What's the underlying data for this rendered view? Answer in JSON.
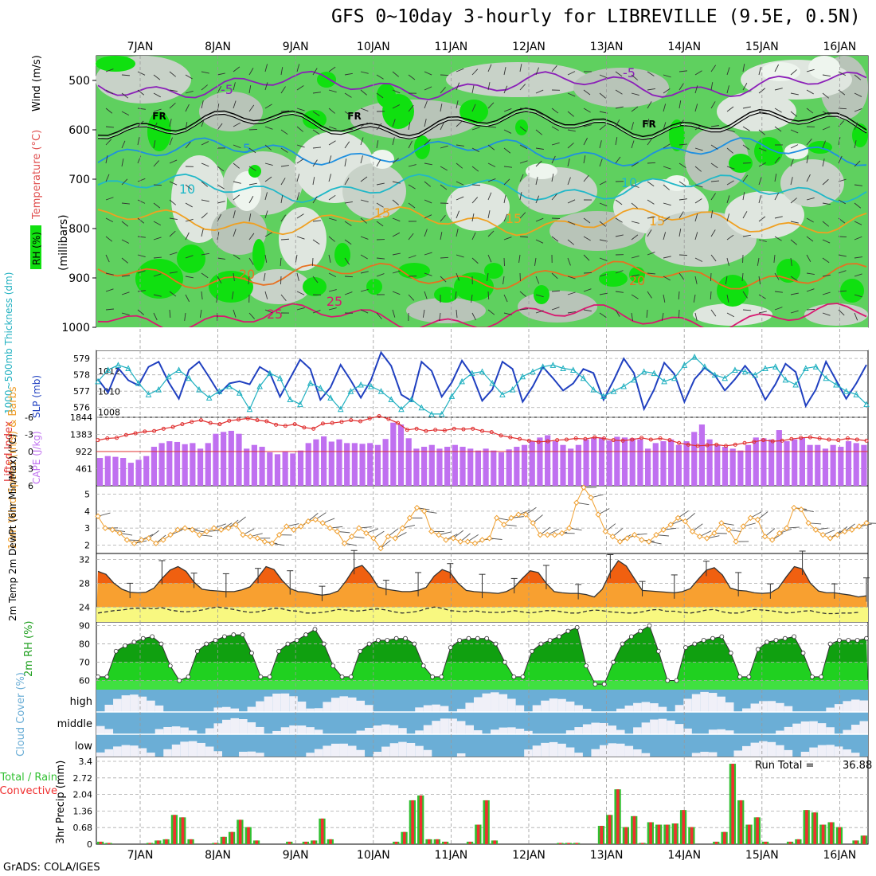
{
  "title": "GFS 0~10day 3-hourly for LIBREVILLE (9.5E, 0.5N)",
  "credit": "GrADS: COLA/IGES",
  "date_labels": [
    "7JAN",
    "8JAN",
    "9JAN",
    "10JAN",
    "11JAN",
    "12JAN",
    "13JAN",
    "14JAN",
    "15JAN",
    "16JAN"
  ],
  "colors": {
    "rh_light": "#90e090",
    "rh_mid": "#5fd05f",
    "rh_bright": "#10e010",
    "temp_minus5": "#8b1fb8",
    "temp_5": "#1f90e0",
    "temp_10": "#20b8c8",
    "temp_15": "#f0a020",
    "temp_20": "#e87020",
    "temp_25": "#d81870",
    "slp": "#2040c0",
    "thickness": "#20b0c0",
    "cape": "#c070f0",
    "lifted": "#e03030",
    "wind10m": "#f0a030",
    "temp_dark": "#f06010",
    "temp_mid": "#f8a030",
    "dew": "#f8f880",
    "cloud_blue": "#6baed6",
    "cloud_white": "#f0f0f8",
    "rain_green": "#30c030",
    "rain_red": "#f03030"
  },
  "chart_data": [
    {
      "id": "upper",
      "type": "contour",
      "ylabel_parts": [
        "RH (%)",
        "Temperature (°C)",
        "Wind (m/s)",
        "(millibars)"
      ],
      "yticks": [
        500,
        600,
        700,
        800,
        900,
        1000
      ],
      "ylim": [
        1000,
        450
      ],
      "contour_labels": [
        {
          "text": "-5",
          "level": -5
        },
        {
          "text": "-5",
          "level": -5
        },
        {
          "text": "FR",
          "level": 0
        },
        {
          "text": "FR",
          "level": 0
        },
        {
          "text": "FR",
          "level": 0
        },
        {
          "text": "5",
          "level": 5
        },
        {
          "text": "10",
          "level": 10
        },
        {
          "text": "10",
          "level": 10
        },
        {
          "text": "15",
          "level": 15
        },
        {
          "text": "15",
          "level": 15
        },
        {
          "text": "15",
          "level": 15
        },
        {
          "text": "20",
          "level": 20
        },
        {
          "text": "20",
          "level": 20
        },
        {
          "text": "25",
          "level": 25
        },
        {
          "text": "25",
          "level": 25
        }
      ],
      "isotherms": [
        {
          "name": "-5",
          "pressure_mean": 510
        },
        {
          "name": "FR",
          "pressure_mean": 585
        },
        {
          "name": "5",
          "pressure_mean": 645
        },
        {
          "name": "10",
          "pressure_mean": 718
        },
        {
          "name": "15",
          "pressure_mean": 785
        },
        {
          "name": "20",
          "pressure_mean": 895
        },
        {
          "name": "25",
          "pressure_mean": 980
        }
      ]
    },
    {
      "id": "slp",
      "type": "line",
      "ylabel_left": "1000~500mb Thickness (dm)",
      "ylabel_right": "SLP (mb)",
      "thickness_ticks": [
        "579",
        "578",
        "577",
        "576"
      ],
      "slp_ticks": [
        "1012",
        "1010",
        "1008"
      ],
      "slp_range": [
        1007.5,
        1014
      ],
      "thickness_range": [
        575.5,
        579.3
      ],
      "slp": [
        1011.2,
        1009.9,
        1012.3,
        1011.1,
        1010.6,
        1012.4,
        1012.9,
        1010.9,
        1009.3,
        1012.1,
        1012.9,
        1011.4,
        1009.8,
        1010.8,
        1011.0,
        1010.7,
        1012.4,
        1011.8,
        1009.5,
        1011.3,
        1013.1,
        1012.2,
        1009.2,
        1010.4,
        1012.6,
        1011.1,
        1009.4,
        1011.1,
        1013.8,
        1012.5,
        1009.7,
        1009.1,
        1012.9,
        1012.0,
        1009.5,
        1010.9,
        1013.0,
        1011.6,
        1009.1,
        1010.2,
        1012.9,
        1012.2,
        1009.0,
        1010.5,
        1012.4,
        1011.3,
        1010.1,
        1010.8,
        1012.2,
        1011.8,
        1009.2,
        1011.1,
        1013.2,
        1011.8,
        1008.3,
        1010.2,
        1012.8,
        1011.7,
        1009.0,
        1011.2,
        1012.3,
        1011.6,
        1010.1,
        1011.2,
        1012.5,
        1011.3,
        1009.2,
        1010.7,
        1012.7,
        1011.9,
        1008.6,
        1010.2,
        1012.9,
        1011.1,
        1009.3,
        1010.8,
        1012.6
      ],
      "thickness": [
        577.6,
        578.3,
        578.6,
        578.4,
        577.5,
        576.8,
        577.1,
        577.9,
        578.3,
        577.8,
        577.1,
        576.6,
        577.0,
        577.3,
        576.9,
        575.9,
        577.3,
        578.1,
        577.8,
        576.5,
        576.2,
        577.5,
        577.2,
        576.6,
        575.9,
        577.0,
        577.4,
        577.3,
        577.0,
        576.5,
        575.9,
        576.5,
        576.0,
        575.6,
        575.6,
        576.7,
        577.6,
        578.1,
        578.2,
        577.5,
        576.8,
        577.1,
        577.9,
        578.2,
        578.5,
        578.6,
        578.4,
        578.3,
        577.8,
        577.1,
        576.7,
        577.0,
        577.3,
        577.7,
        578.2,
        578.1,
        577.6,
        577.8,
        578.6,
        579.1,
        578.5,
        578.0,
        577.8,
        578.3,
        578.2,
        578.0,
        578.4,
        578.5,
        577.7,
        577.4,
        578.4,
        578.5,
        577.8,
        577.4,
        577.0,
        576.8,
        576.2
      ]
    },
    {
      "id": "cape",
      "type": "bar+line",
      "ylabel_left": "Lifted Index",
      "ylabel_right": "CAPE (J/kg)",
      "lifted_ticks": [
        "-6",
        "-3",
        "0",
        "3",
        "6"
      ],
      "cape_ticks": [
        "1844",
        "1383",
        "922",
        "461"
      ],
      "cape_max": 1844,
      "lifted_range": [
        -6,
        6
      ],
      "cape": [
        750,
        800,
        780,
        750,
        620,
        700,
        800,
        1050,
        1150,
        1200,
        1180,
        1120,
        1150,
        1000,
        1150,
        1400,
        1450,
        1480,
        1400,
        1000,
        1100,
        1050,
        900,
        850,
        920,
        870,
        950,
        1150,
        1250,
        1330,
        1190,
        1250,
        1150,
        1150,
        1130,
        1150,
        1100,
        1260,
        1700,
        1650,
        1280,
        1000,
        1050,
        1100,
        1000,
        1050,
        1100,
        1050,
        1000,
        950,
        1000,
        950,
        900,
        980,
        1050,
        1100,
        1200,
        1300,
        1360,
        1200,
        1100,
        1000,
        1100,
        1250,
        1300,
        1300,
        1220,
        1320,
        1300,
        1280,
        1250,
        1000,
        1150,
        1200,
        1250,
        1100,
        1200,
        1450,
        1650,
        1250,
        1100,
        1050,
        1000,
        950,
        1100,
        1300,
        1280,
        1250,
        1500,
        1200,
        1250,
        1300,
        1100,
        1100,
        1000,
        1100,
        1050,
        1200,
        1150,
        1100
      ],
      "lifted": [
        -2,
        -2.3,
        -2.4,
        -2.9,
        -3.2,
        -3.5,
        -3.6,
        -4.0,
        -4.3,
        -4.8,
        -5.2,
        -5.5,
        -5.0,
        -4.8,
        -5.4,
        -5.6,
        -5.8,
        -5.5,
        -5.3,
        -4.7,
        -4.5,
        -4.8,
        -4.2,
        -4.0,
        -4.9,
        -5.0,
        -5.2,
        -5.5,
        -5.3,
        -5.8,
        -6.2,
        -5.7,
        -5.0,
        -3.8,
        -4.0,
        -3.6,
        -3.8,
        -3.7,
        -4.0,
        -3.9,
        -4.0,
        -3.6,
        -3.4,
        -2.8,
        -2.5,
        -2.2,
        -1.9,
        -1.7,
        -1.8,
        -2.0,
        -2.1,
        -2.3,
        -2.2,
        -2.5,
        -2.3,
        -2.0,
        -1.9,
        -2.1,
        -2.4,
        -2.1,
        -2.3,
        -2.0,
        -1.5,
        -1.2,
        -1.0,
        -1.1,
        -1.2,
        -1.0,
        -1.2,
        -1.5,
        -1.7,
        -2.0,
        -1.8,
        -1.9,
        -2.2,
        -2.4,
        -2.5,
        -2.3,
        -2.1,
        -2.0,
        -2.3,
        -2.1,
        -1.9
      ]
    },
    {
      "id": "wind10m",
      "type": "line",
      "ylabel": "10m Wind Speed (m/s) & Barbs",
      "yticks": [
        "5",
        "4",
        "3",
        "2"
      ],
      "yrange": [
        1.5,
        5.5
      ],
      "values": [
        3.7,
        3.0,
        2.9,
        2.7,
        2.3,
        2.1,
        2.3,
        2.4,
        2.1,
        2.3,
        2.6,
        2.9,
        3.0,
        2.9,
        2.6,
        2.8,
        3.0,
        2.9,
        3.0,
        3.2,
        2.6,
        2.5,
        2.4,
        2.2,
        2.1,
        2.6,
        3.1,
        2.9,
        3.1,
        3.4,
        3.5,
        3.3,
        3.0,
        2.8,
        2.1,
        2.5,
        3.0,
        2.7,
        2.4,
        1.8,
        2.5,
        2.4,
        3.0,
        3.6,
        4.2,
        4.0,
        2.8,
        2.6,
        2.3,
        2.4,
        2.2,
        2.2,
        2.1,
        2.3,
        2.4,
        3.6,
        3.2,
        3.6,
        3.8,
        3.8,
        3.3,
        2.6,
        2.6,
        2.6,
        2.7,
        3.0,
        4.5,
        5.4,
        4.8,
        3.8,
        2.8,
        2.5,
        2.2,
        2.4,
        2.6,
        2.3,
        2.2,
        2.6,
        2.9,
        3.2,
        3.6,
        3.4,
        2.8,
        2.5,
        2.4,
        2.7,
        3.3,
        2.9,
        2.2,
        3.1,
        3.6,
        3.5,
        2.5,
        2.3,
        2.7,
        3.0,
        4.2,
        4.1,
        3.3,
        2.9,
        2.6,
        2.4,
        2.6,
        2.8,
        2.9,
        3.1,
        3.3
      ]
    },
    {
      "id": "temp2m",
      "type": "area",
      "ylabel": "2m Temp 2m DewPt (6hr Min/Max) (°C)",
      "yticks": [
        "32",
        "28",
        "24"
      ],
      "yrange": [
        21.5,
        33
      ],
      "temp": [
        30.0,
        29.5,
        28.0,
        27.0,
        26.5,
        26.4,
        26.5,
        27.2,
        28.8,
        30.2,
        30.8,
        30.0,
        28.2,
        27.0,
        26.8,
        26.7,
        26.6,
        26.6,
        26.9,
        27.4,
        29.0,
        30.8,
        30.3,
        28.5,
        27.1,
        26.6,
        26.5,
        26.2,
        26.0,
        26.2,
        26.7,
        28.4,
        30.5,
        31.0,
        29.5,
        27.4,
        27.0,
        26.8,
        26.6,
        26.6,
        26.8,
        27.3,
        29.2,
        30.3,
        29.8,
        28.0,
        26.8,
        26.6,
        26.5,
        26.4,
        26.3,
        26.6,
        27.3,
        28.8,
        30.1,
        29.8,
        28.0,
        26.6,
        26.4,
        26.3,
        26.3,
        26.1,
        25.7,
        27.0,
        29.8,
        31.8,
        30.9,
        28.8,
        26.8,
        26.7,
        26.6,
        26.5,
        26.4,
        26.6,
        27.1,
        28.7,
        30.2,
        30.6,
        29.4,
        27.2,
        26.8,
        26.7,
        26.4,
        26.3,
        26.4,
        27.2,
        29.1,
        30.8,
        30.4,
        28.0,
        26.7,
        26.4,
        26.4,
        26.2,
        26.0,
        25.7,
        25.9
      ],
      "dewpoint": [
        23.0,
        23.2,
        23.4,
        23.5,
        23.7,
        23.8,
        23.8,
        23.7,
        23.9,
        23.5,
        23.3,
        23.2,
        23.3,
        23.5,
        23.8,
        24.0,
        23.8,
        23.6,
        23.3,
        23.1,
        23.2,
        23.5,
        23.8,
        23.7,
        23.4,
        23.3,
        23.0,
        23.0,
        23.1,
        23.3,
        23.6,
        23.5,
        23.3,
        23.4,
        23.6,
        23.7,
        23.5,
        23.2,
        23.0,
        23.1,
        23.3,
        23.7,
        24.0,
        23.8,
        23.4,
        23.3,
        23.2,
        23.4,
        23.2,
        23.1,
        23.1,
        23.2,
        23.4,
        23.2,
        23.0,
        23.2,
        23.4,
        23.4,
        23.2,
        23.0,
        23.0,
        23.3,
        23.5,
        23.4,
        23.2,
        23.1,
        23.0,
        23.0,
        23.2,
        23.5,
        23.6,
        23.3,
        23.3,
        23.1,
        23.0,
        23.2,
        23.5,
        23.6,
        23.2,
        23.0,
        23.0,
        23.3,
        23.6,
        23.5,
        23.4,
        23.2,
        23.0,
        23.1,
        23.3,
        23.4,
        23.1,
        22.9,
        22.9,
        23.0,
        23.0,
        23.1
      ]
    },
    {
      "id": "rh2m",
      "type": "area",
      "ylabel": "2m RH (%)",
      "yticks": [
        "90",
        "80",
        "70",
        "60"
      ],
      "yrange": [
        55,
        92
      ],
      "values": [
        62,
        62,
        76,
        79,
        81,
        83,
        84,
        80,
        68,
        60,
        62,
        76,
        80,
        82,
        84,
        85,
        85,
        75,
        62,
        62,
        76,
        80,
        82,
        85,
        88,
        80,
        68,
        62,
        62,
        76,
        80,
        82,
        82,
        83,
        83,
        80,
        68,
        62,
        62,
        78,
        82,
        83,
        83,
        83,
        80,
        70,
        62,
        62,
        76,
        80,
        82,
        84,
        87,
        89,
        68,
        58,
        58,
        70,
        80,
        84,
        87,
        90,
        76,
        60,
        60,
        78,
        80,
        82,
        83,
        84,
        75,
        62,
        62,
        77,
        81,
        82,
        83,
        84,
        75,
        62,
        62,
        80,
        82,
        82,
        82,
        83
      ]
    },
    {
      "id": "cloud",
      "type": "bar",
      "ylabel": "Cloud Cover (%)",
      "levels": [
        "high",
        "middle",
        "low"
      ]
    },
    {
      "id": "precip",
      "type": "bar",
      "ylabel": "3hr Precip (mm)",
      "legend_total": "Total / Rain",
      "legend_convective": "Convective",
      "run_total_label": "Run Total =",
      "run_total": "36.88",
      "yticks": [
        "3.4",
        "2.72",
        "2.04",
        "1.36",
        "0.68",
        "0"
      ],
      "ymax": 3.4,
      "values": [
        0.1,
        0.05,
        0.0,
        0.0,
        0.0,
        0.0,
        0.05,
        0.15,
        0.2,
        1.2,
        1.1,
        0.2,
        0.0,
        0.0,
        0.05,
        0.3,
        0.5,
        1.0,
        0.7,
        0.15,
        0.0,
        0.0,
        0.0,
        0.1,
        0.0,
        0.1,
        0.15,
        1.05,
        0.2,
        0.0,
        0.0,
        0.0,
        0.0,
        0.0,
        0.0,
        0.0,
        0.1,
        0.5,
        1.8,
        2.0,
        0.2,
        0.2,
        0.1,
        0.0,
        0.0,
        0.1,
        0.8,
        1.8,
        0.15,
        0.0,
        0.0,
        0.0,
        0.0,
        0.0,
        0.0,
        0.0,
        0.05,
        0.05,
        0.05,
        0.0,
        0.0,
        0.75,
        1.2,
        2.25,
        0.7,
        1.15,
        0.05,
        0.9,
        0.8,
        0.8,
        0.85,
        1.4,
        0.7,
        0.0,
        0.0,
        0.1,
        0.5,
        3.3,
        1.8,
        0.8,
        1.1,
        0.1,
        0.0,
        0.0,
        0.1,
        0.2,
        1.4,
        1.3,
        0.8,
        0.9,
        0.7,
        0.0,
        0.15,
        0.35
      ]
    }
  ]
}
